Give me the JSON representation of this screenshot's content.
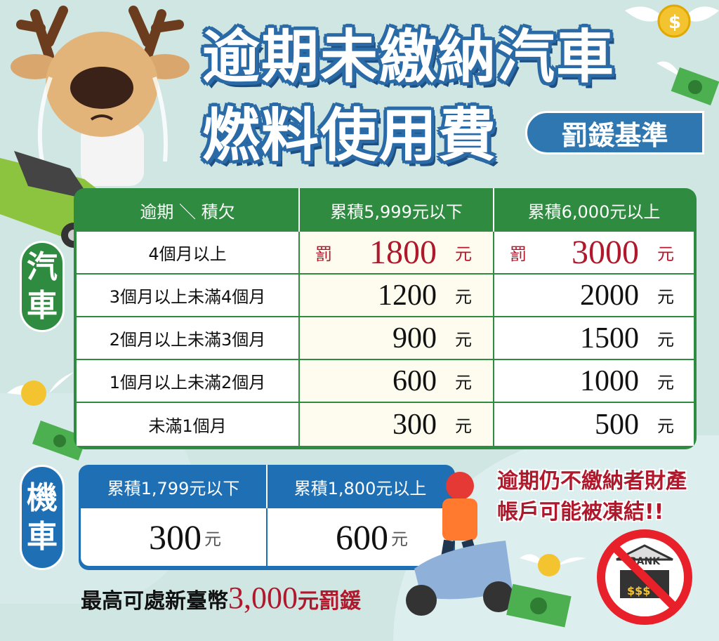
{
  "title": {
    "line1": "逾期未繳納汽車",
    "line2": "燃料使用費",
    "badge": "罰鍰基準"
  },
  "colors": {
    "car_green": "#2e8b3f",
    "moto_blue": "#1e6fb4",
    "title_blue": "#2a6aa6",
    "fine_red": "#b0182c",
    "background": "#cfe6e3"
  },
  "car": {
    "label_top": "汽",
    "label_bottom": "車",
    "headers": [
      "逾期 ＼ 積欠",
      "累積5,999元以下",
      "累積6,000元以上"
    ],
    "fine_prefix": "罰",
    "unit": "元",
    "rows": [
      {
        "period": "4個月以上",
        "under": "1800",
        "over": "3000"
      },
      {
        "period": "3個月以上未滿4個月",
        "under": "1200",
        "over": "2000"
      },
      {
        "period": "2個月以上未滿3個月",
        "under": "900",
        "over": "1500"
      },
      {
        "period": "1個月以上未滿2個月",
        "under": "600",
        "over": "1000"
      },
      {
        "period": "未滿1個月",
        "under": "300",
        "over": "500"
      }
    ]
  },
  "motorcycle": {
    "label_top": "機",
    "label_bottom": "車",
    "headers": [
      "累積1,799元以下",
      "累積1,800元以上"
    ],
    "values": [
      "300",
      "600"
    ],
    "unit": "元"
  },
  "footer": {
    "prefix": "最高可處新臺幣",
    "amount": "3,000",
    "suffix": "元罰鍰"
  },
  "warning": {
    "line1": "逾期仍不繳納者財產",
    "line2": "帳戶可能被凍結!!"
  },
  "bank_sign": {
    "label": "BANK",
    "money": "$$$"
  },
  "illustrations": [
    "crying-deer-mascot",
    "green-convertible-car",
    "scooter-rider",
    "flying-coins",
    "flying-banknotes",
    "no-bank-sign"
  ]
}
